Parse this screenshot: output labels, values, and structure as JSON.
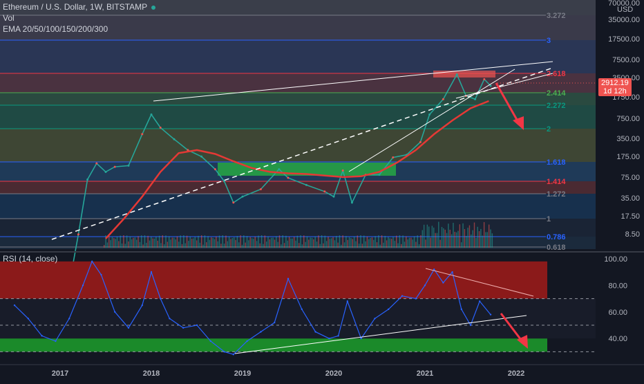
{
  "header": {
    "title": "Ethereum / U.S. Dollar, 1W, BITSTAMP",
    "vol_label": "Vol",
    "ema_label": "EMA 20/50/100/150/200/300"
  },
  "rsi": {
    "label": "RSI (14, close)"
  },
  "price_axis": {
    "currency": "USD",
    "last_price": "2912.19",
    "countdown": "1d 12h",
    "last_price_color": "#ef5350"
  },
  "colors": {
    "bull": "#26a69a",
    "bear": "#ef5350",
    "ema": "#e53935",
    "rsi_line": "#2962ff",
    "overbought_zone": "#8b1a1a",
    "oversold_zone": "#1b8a2a"
  },
  "chart_data": [
    {
      "type": "line",
      "name": "price",
      "title": "Ethereum / U.S. Dollar, 1W, BITSTAMP",
      "scale": "log",
      "ylabel": "USD",
      "x_ticks": [
        "2017",
        "2018",
        "2019",
        "2020",
        "2021",
        "2022"
      ],
      "y_ticks": [
        "70000.00",
        "35000.00",
        "17500.00",
        "7500.00",
        "3500.00",
        "1750.00",
        "750.00",
        "350.00",
        "175.00",
        "75.00",
        "35.00",
        "17.50",
        "8.50"
      ],
      "x": [
        2016.5,
        2016.7,
        2016.85,
        2017.0,
        2017.1,
        2017.2,
        2017.3,
        2017.4,
        2017.5,
        2017.6,
        2017.75,
        2017.9,
        2018.0,
        2018.1,
        2018.25,
        2018.4,
        2018.55,
        2018.7,
        2018.8,
        2018.9,
        2019.0,
        2019.2,
        2019.4,
        2019.5,
        2019.7,
        2019.9,
        2020.0,
        2020.1,
        2020.2,
        2020.35,
        2020.5,
        2020.65,
        2020.8,
        2020.95,
        2021.05,
        2021.2,
        2021.35,
        2021.45,
        2021.55,
        2021.65,
        2021.72
      ],
      "values": [
        12,
        11,
        9,
        8,
        11,
        45,
        210,
        330,
        260,
        300,
        310,
        750,
        1300,
        900,
        650,
        480,
        400,
        280,
        200,
        110,
        130,
        160,
        280,
        220,
        180,
        150,
        130,
        270,
        110,
        240,
        240,
        390,
        420,
        600,
        1300,
        2000,
        4000,
        2200,
        2000,
        3500,
        2912.19
      ],
      "ema": {
        "x": [
          2017.5,
          2017.7,
          2017.9,
          2018.1,
          2018.3,
          2018.5,
          2018.7,
          2018.9,
          2019.1,
          2019.3,
          2019.5,
          2019.7,
          2019.9,
          2020.1,
          2020.3,
          2020.5,
          2020.7,
          2020.9,
          2021.1,
          2021.3,
          2021.5,
          2021.7
        ],
        "values": [
          40,
          70,
          130,
          260,
          440,
          480,
          430,
          350,
          290,
          260,
          250,
          245,
          235,
          225,
          230,
          260,
          340,
          480,
          750,
          1100,
          1550,
          1900
        ]
      },
      "fib_levels": [
        "3.272",
        "3",
        "2.618",
        "2.414",
        "2.272",
        "2",
        "1.618",
        "1.414",
        "1.272",
        "1",
        "0.786",
        "0.618"
      ],
      "fib_colors": [
        "#787b86",
        "#2962ff",
        "#f23645",
        "#4caf50",
        "#089981",
        "#089981",
        "#2962ff",
        "#f23645",
        "#787b86",
        "#787b86",
        "#2962ff",
        "#787b86"
      ]
    },
    {
      "type": "line",
      "name": "rsi",
      "title": "RSI (14, close)",
      "ylim": [
        25,
        100
      ],
      "y_ticks": [
        "100.00",
        "80.00",
        "60.00",
        "40.00"
      ],
      "x": [
        2016.5,
        2016.65,
        2016.8,
        2016.95,
        2017.1,
        2017.25,
        2017.35,
        2017.45,
        2017.6,
        2017.75,
        2017.9,
        2018.0,
        2018.1,
        2018.2,
        2018.35,
        2018.5,
        2018.65,
        2018.8,
        2018.9,
        2019.05,
        2019.2,
        2019.35,
        2019.5,
        2019.65,
        2019.8,
        2019.95,
        2020.05,
        2020.15,
        2020.3,
        2020.45,
        2020.6,
        2020.75,
        2020.9,
        2021.0,
        2021.1,
        2021.2,
        2021.3,
        2021.4,
        2021.5,
        2021.6,
        2021.72
      ],
      "values": [
        65,
        55,
        42,
        38,
        55,
        80,
        98,
        88,
        60,
        48,
        65,
        90,
        70,
        55,
        48,
        50,
        38,
        30,
        28,
        38,
        45,
        52,
        85,
        62,
        45,
        40,
        42,
        68,
        40,
        55,
        62,
        72,
        70,
        80,
        92,
        82,
        90,
        62,
        50,
        68,
        58
      ]
    }
  ]
}
